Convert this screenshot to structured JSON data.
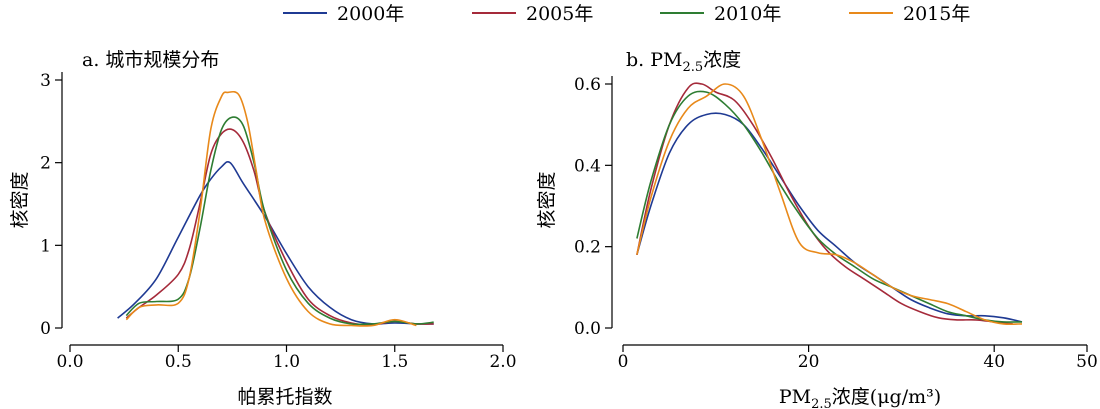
{
  "legend": [
    {
      "label": "2000年",
      "color": "#1f3a93"
    },
    {
      "label": "2005年",
      "color": "#a52a3a"
    },
    {
      "label": "2010年",
      "color": "#2e7d32"
    },
    {
      "label": "2015年",
      "color": "#e8891a"
    }
  ],
  "chart_data": [
    {
      "type": "line",
      "title": "a. 城市规模分布",
      "xlabel": "帕累托指数",
      "ylabel": "核密度",
      "xlim": [
        0,
        2
      ],
      "ylim": [
        0,
        3
      ],
      "xticks": [
        "0.0",
        "0.5",
        "1.0",
        "1.5",
        "2.0"
      ],
      "yticks": [
        "0",
        "1",
        "2",
        "3"
      ],
      "grid": false,
      "series": [
        {
          "name": "2000年",
          "color": "#1f3a93",
          "x": [
            0.22,
            0.3,
            0.4,
            0.5,
            0.6,
            0.65,
            0.7,
            0.74,
            0.8,
            0.9,
            1.0,
            1.1,
            1.2,
            1.3,
            1.4,
            1.5,
            1.6,
            1.68
          ],
          "y": [
            0.12,
            0.3,
            0.6,
            1.1,
            1.6,
            1.8,
            1.95,
            2.0,
            1.75,
            1.35,
            0.9,
            0.5,
            0.25,
            0.1,
            0.05,
            0.06,
            0.05,
            0.05
          ]
        },
        {
          "name": "2005年",
          "color": "#a52a3a",
          "x": [
            0.26,
            0.32,
            0.4,
            0.5,
            0.55,
            0.6,
            0.65,
            0.7,
            0.75,
            0.8,
            0.85,
            0.9,
            1.0,
            1.1,
            1.2,
            1.3,
            1.4,
            1.5,
            1.6,
            1.68
          ],
          "y": [
            0.12,
            0.25,
            0.4,
            0.65,
            0.95,
            1.5,
            2.1,
            2.35,
            2.4,
            2.25,
            1.9,
            1.4,
            0.8,
            0.35,
            0.15,
            0.06,
            0.04,
            0.08,
            0.05,
            0.05
          ]
        },
        {
          "name": "2010年",
          "color": "#2e7d32",
          "x": [
            0.26,
            0.32,
            0.4,
            0.5,
            0.55,
            0.6,
            0.65,
            0.7,
            0.75,
            0.8,
            0.85,
            0.9,
            1.0,
            1.1,
            1.2,
            1.3,
            1.4,
            1.5,
            1.6,
            1.68
          ],
          "y": [
            0.15,
            0.3,
            0.32,
            0.35,
            0.6,
            1.2,
            1.9,
            2.4,
            2.55,
            2.45,
            2.0,
            1.4,
            0.7,
            0.3,
            0.12,
            0.05,
            0.05,
            0.08,
            0.05,
            0.07
          ]
        },
        {
          "name": "2015年",
          "color": "#e8891a",
          "x": [
            0.26,
            0.32,
            0.4,
            0.5,
            0.55,
            0.6,
            0.65,
            0.7,
            0.73,
            0.78,
            0.82,
            0.86,
            0.9,
            1.0,
            1.1,
            1.2,
            1.3,
            1.4,
            1.5,
            1.6
          ],
          "y": [
            0.1,
            0.25,
            0.28,
            0.3,
            0.6,
            1.4,
            2.4,
            2.8,
            2.85,
            2.82,
            2.5,
            1.9,
            1.3,
            0.6,
            0.2,
            0.05,
            0.03,
            0.03,
            0.1,
            0.03
          ]
        }
      ]
    },
    {
      "type": "line",
      "title": "b. PM2.5浓度",
      "title_main": "b. PM",
      "title_sub": "2.5",
      "title_tail": "浓度",
      "xlabel": "PM2.5浓度(μg/m³)",
      "xlabel_main": "PM",
      "xlabel_sub": "2.5",
      "xlabel_tail": "浓度(μg/m³)",
      "ylabel": "核密度",
      "xlim": [
        0,
        50
      ],
      "ylim": [
        0,
        0.6
      ],
      "xticks": [
        "0",
        "20",
        "40",
        "50"
      ],
      "yticks": [
        "0.0",
        "0.2",
        "0.4",
        "0.6"
      ],
      "grid": false,
      "series": [
        {
          "name": "2000年",
          "color": "#1f3a93",
          "x": [
            1.5,
            3,
            5,
            7,
            9,
            11,
            13,
            15,
            17,
            19,
            21,
            23,
            25,
            27,
            29,
            31,
            33,
            35,
            37,
            39,
            41,
            43
          ],
          "y": [
            0.18,
            0.3,
            0.43,
            0.5,
            0.525,
            0.525,
            0.5,
            0.44,
            0.37,
            0.3,
            0.24,
            0.2,
            0.16,
            0.13,
            0.1,
            0.07,
            0.05,
            0.035,
            0.03,
            0.03,
            0.025,
            0.015
          ]
        },
        {
          "name": "2005年",
          "color": "#a52a3a",
          "x": [
            1.5,
            3,
            5,
            7,
            8.5,
            10,
            12,
            14,
            16,
            18,
            20,
            22,
            24,
            26,
            28,
            30,
            32,
            34,
            36,
            38,
            40,
            42
          ],
          "y": [
            0.18,
            0.34,
            0.5,
            0.59,
            0.6,
            0.58,
            0.56,
            0.5,
            0.42,
            0.33,
            0.25,
            0.19,
            0.15,
            0.12,
            0.09,
            0.06,
            0.04,
            0.025,
            0.02,
            0.02,
            0.015,
            0.01
          ]
        },
        {
          "name": "2010年",
          "color": "#2e7d32",
          "x": [
            1.5,
            3,
            5,
            7,
            9,
            11,
            13,
            15,
            17,
            19,
            21,
            23,
            25,
            27,
            29,
            31,
            33,
            35,
            37,
            39,
            41,
            43
          ],
          "y": [
            0.22,
            0.36,
            0.5,
            0.57,
            0.58,
            0.55,
            0.5,
            0.43,
            0.35,
            0.28,
            0.22,
            0.18,
            0.15,
            0.12,
            0.1,
            0.08,
            0.06,
            0.04,
            0.03,
            0.02,
            0.015,
            0.015
          ]
        },
        {
          "name": "2015年",
          "color": "#e8891a",
          "x": [
            1.5,
            3,
            5,
            7,
            9,
            11,
            13,
            15,
            17,
            19,
            21,
            23,
            25,
            27,
            29,
            31,
            33,
            35,
            37,
            39,
            41,
            43
          ],
          "y": [
            0.18,
            0.32,
            0.46,
            0.54,
            0.57,
            0.6,
            0.57,
            0.46,
            0.33,
            0.21,
            0.185,
            0.18,
            0.16,
            0.13,
            0.1,
            0.08,
            0.07,
            0.06,
            0.04,
            0.02,
            0.01,
            0.01
          ]
        }
      ]
    }
  ]
}
